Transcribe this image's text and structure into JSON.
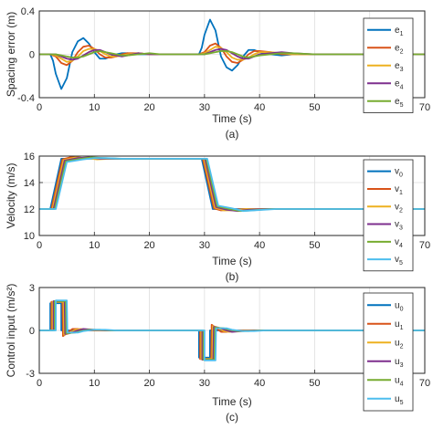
{
  "figure": {
    "captions": [
      "(a)",
      "(b)",
      "(c)"
    ]
  },
  "series_colors": [
    "#0072BD",
    "#D95319",
    "#EDB120",
    "#7E2F8E",
    "#77AC30",
    "#4DBEEE"
  ],
  "chart_data": [
    {
      "type": "line",
      "title": "",
      "xlabel": "Time (s)",
      "ylabel": "Spacing error (m)",
      "xlim": [
        0,
        70
      ],
      "ylim": [
        -0.4,
        0.4
      ],
      "xticks": [
        0,
        10,
        20,
        30,
        40,
        50,
        60,
        70
      ],
      "yticks": [
        -0.4,
        0,
        0.4
      ],
      "ytick_labels": [
        "-0.4",
        "0",
        "0.4"
      ],
      "xtick_labels": [
        "0",
        "10",
        "20",
        "30",
        "40",
        "50",
        "60",
        "70"
      ],
      "grid": true,
      "legend_position": "right",
      "legend_labels": [
        {
          "base": "e",
          "sub": "1"
        },
        {
          "base": "e",
          "sub": "2"
        },
        {
          "base": "e",
          "sub": "3"
        },
        {
          "base": "e",
          "sub": "4"
        },
        {
          "base": "e",
          "sub": "5"
        }
      ],
      "series": [
        {
          "x": [
            0,
            2,
            2.5,
            3,
            4,
            5,
            6,
            7,
            8,
            9,
            10,
            11,
            12,
            13,
            14,
            15,
            16,
            18,
            20,
            22,
            26,
            29,
            29.5,
            30,
            31,
            32,
            33,
            34,
            35,
            36,
            37,
            38,
            39,
            40,
            42,
            44,
            46,
            50,
            55,
            60,
            65,
            70
          ],
          "y": [
            0,
            0,
            -0.06,
            -0.18,
            -0.32,
            -0.22,
            0.02,
            0.12,
            0.15,
            0.1,
            0.02,
            -0.04,
            -0.04,
            -0.02,
            0.0,
            0.01,
            0.01,
            0.0,
            0,
            0,
            0,
            0,
            0.06,
            0.18,
            0.32,
            0.22,
            -0.02,
            -0.12,
            -0.15,
            -0.1,
            -0.02,
            0.04,
            0.04,
            0.02,
            0,
            -0.01,
            0,
            0,
            0,
            0,
            0,
            0
          ]
        },
        {
          "x": [
            0,
            2,
            3,
            4,
            5,
            6,
            7,
            8,
            9,
            10,
            11,
            12,
            13,
            14,
            15,
            16,
            18,
            20,
            22,
            26,
            29,
            30,
            31,
            32,
            33,
            34,
            35,
            36,
            37,
            38,
            39,
            40,
            42,
            44,
            46,
            50,
            55,
            60,
            65,
            70
          ],
          "y": [
            0,
            0,
            -0.02,
            -0.08,
            -0.1,
            -0.06,
            0.02,
            0.07,
            0.08,
            0.05,
            0.0,
            -0.03,
            -0.03,
            -0.02,
            0,
            0.01,
            0.01,
            0,
            0,
            0,
            0,
            0.02,
            0.08,
            0.1,
            0.06,
            -0.02,
            -0.07,
            -0.08,
            -0.05,
            0,
            0.03,
            0.03,
            0.02,
            0,
            0,
            0,
            0,
            0,
            0,
            0
          ]
        },
        {
          "x": [
            0,
            2,
            3,
            4,
            5,
            6,
            7,
            8,
            9,
            10,
            11,
            12,
            13,
            14,
            15,
            16,
            18,
            20,
            22,
            26,
            29,
            30,
            31,
            32,
            33,
            34,
            35,
            36,
            37,
            38,
            39,
            40,
            42,
            44,
            46,
            50,
            55,
            60,
            65,
            70
          ],
          "y": [
            0,
            0,
            -0.01,
            -0.04,
            -0.07,
            -0.06,
            -0.02,
            0.03,
            0.05,
            0.05,
            0.03,
            0.0,
            -0.02,
            -0.02,
            -0.01,
            0,
            0.01,
            0,
            0,
            0,
            0,
            0.01,
            0.04,
            0.07,
            0.06,
            0.02,
            -0.03,
            -0.05,
            -0.05,
            -0.03,
            0,
            0.02,
            0.02,
            0.01,
            0,
            0,
            0,
            0,
            0,
            0
          ]
        },
        {
          "x": [
            0,
            2,
            3,
            4,
            5,
            6,
            7,
            8,
            9,
            10,
            11,
            12,
            13,
            14,
            15,
            16,
            18,
            20,
            22,
            26,
            29,
            30,
            31,
            32,
            33,
            34,
            35,
            36,
            37,
            38,
            39,
            40,
            42,
            44,
            46,
            50,
            55,
            60,
            65,
            70
          ],
          "y": [
            0,
            0,
            0,
            -0.02,
            -0.04,
            -0.05,
            -0.04,
            -0.01,
            0.02,
            0.04,
            0.04,
            0.02,
            0.0,
            -0.01,
            -0.02,
            -0.01,
            0.01,
            0,
            0,
            0,
            0,
            0,
            0.02,
            0.04,
            0.05,
            0.04,
            0.01,
            -0.02,
            -0.04,
            -0.04,
            -0.02,
            0,
            0.01,
            0.02,
            0.01,
            0,
            0,
            0,
            0,
            0
          ]
        },
        {
          "x": [
            0,
            2,
            3,
            4,
            5,
            6,
            7,
            8,
            9,
            10,
            11,
            12,
            13,
            14,
            15,
            16,
            18,
            20,
            22,
            26,
            29,
            30,
            31,
            32,
            33,
            34,
            35,
            36,
            37,
            38,
            39,
            40,
            42,
            44,
            46,
            50,
            55,
            60,
            65,
            70
          ],
          "y": [
            0,
            0,
            0,
            -0.01,
            -0.02,
            -0.03,
            -0.03,
            -0.02,
            0.0,
            0.02,
            0.03,
            0.02,
            0.01,
            0,
            -0.01,
            -0.01,
            0,
            0.01,
            0,
            0,
            0,
            0,
            0.01,
            0.02,
            0.03,
            0.03,
            0.02,
            0,
            -0.02,
            -0.03,
            -0.02,
            -0.01,
            0,
            0.01,
            0.01,
            0,
            0,
            0,
            0,
            0
          ]
        }
      ]
    },
    {
      "type": "line",
      "title": "",
      "xlabel": "Time (s)",
      "ylabel": "Velocity (m/s)",
      "xlim": [
        0,
        70
      ],
      "ylim": [
        10,
        16
      ],
      "xticks": [
        0,
        10,
        20,
        30,
        40,
        50,
        60,
        70
      ],
      "yticks": [
        10,
        12,
        14,
        16
      ],
      "ytick_labels": [
        "10",
        "12",
        "14",
        "16"
      ],
      "xtick_labels": [
        "0",
        "10",
        "20",
        "30",
        "40",
        "50",
        "60",
        "70"
      ],
      "grid": true,
      "legend_position": "right",
      "legend_labels": [
        {
          "base": "v",
          "sub": "0"
        },
        {
          "base": "v",
          "sub": "1"
        },
        {
          "base": "v",
          "sub": "2"
        },
        {
          "base": "v",
          "sub": "3"
        },
        {
          "base": "v",
          "sub": "4"
        },
        {
          "base": "v",
          "sub": "5"
        }
      ],
      "series": [
        {
          "x": [
            0,
            2,
            4,
            8,
            12,
            29,
            29.5,
            31.5,
            40,
            70
          ],
          "y": [
            12,
            12,
            15.8,
            15.8,
            15.8,
            15.8,
            15.8,
            12,
            12,
            12
          ]
        },
        {
          "x": [
            0,
            2.2,
            4.2,
            6,
            8,
            10,
            12,
            29.2,
            29.7,
            31.7,
            33,
            35,
            37,
            40,
            70
          ],
          "y": [
            12,
            12,
            15.75,
            15.95,
            15.85,
            15.8,
            15.8,
            15.8,
            15.8,
            12.05,
            11.9,
            11.95,
            12,
            12,
            12
          ]
        },
        {
          "x": [
            0,
            2.4,
            4.4,
            6.5,
            8.5,
            10.5,
            13,
            29.4,
            29.9,
            31.9,
            33.5,
            35.5,
            37.5,
            40,
            70
          ],
          "y": [
            12,
            12,
            15.7,
            15.9,
            15.85,
            15.75,
            15.8,
            15.8,
            15.8,
            12.1,
            11.9,
            11.9,
            12,
            12,
            12
          ]
        },
        {
          "x": [
            0,
            2.6,
            4.6,
            7,
            9,
            11,
            14,
            29.6,
            30.1,
            32.1,
            34,
            36,
            38,
            41,
            70
          ],
          "y": [
            12,
            12,
            15.65,
            15.85,
            15.9,
            15.8,
            15.8,
            15.8,
            15.8,
            12.15,
            11.95,
            11.85,
            11.95,
            12,
            12
          ]
        },
        {
          "x": [
            0,
            2.8,
            4.8,
            7.5,
            9.5,
            11.5,
            14.5,
            29.8,
            30.3,
            32.3,
            34.5,
            36.5,
            38.5,
            42,
            70
          ],
          "y": [
            12,
            12,
            15.6,
            15.8,
            15.9,
            15.85,
            15.8,
            15.8,
            15.8,
            12.2,
            12.0,
            11.85,
            11.9,
            12,
            12
          ]
        },
        {
          "x": [
            0,
            3.0,
            5.0,
            8,
            10,
            12,
            15,
            30.0,
            30.5,
            32.5,
            35,
            37,
            39,
            43,
            70
          ],
          "y": [
            12,
            12,
            15.55,
            15.75,
            15.85,
            15.85,
            15.8,
            15.8,
            15.8,
            12.25,
            12.05,
            11.85,
            11.9,
            12,
            12
          ]
        }
      ]
    },
    {
      "type": "line",
      "title": "",
      "xlabel": "Time (s)",
      "ylabel": "Control input (m/s²)",
      "xlim": [
        0,
        70
      ],
      "ylim": [
        -3,
        3
      ],
      "xticks": [
        0,
        10,
        20,
        30,
        40,
        50,
        60,
        70
      ],
      "yticks": [
        -3,
        0,
        3
      ],
      "ytick_labels": [
        "-3",
        "0",
        "3"
      ],
      "xtick_labels": [
        "0",
        "10",
        "20",
        "30",
        "40",
        "50",
        "60",
        "70"
      ],
      "grid": true,
      "legend_position": "right",
      "legend_labels": [
        {
          "base": "u",
          "sub": "0"
        },
        {
          "base": "u",
          "sub": "1"
        },
        {
          "base": "u",
          "sub": "2"
        },
        {
          "base": "u",
          "sub": "3"
        },
        {
          "base": "u",
          "sub": "4"
        },
        {
          "base": "u",
          "sub": "5"
        }
      ],
      "series": [
        {
          "x": [
            0,
            2,
            2,
            4,
            4,
            29,
            29,
            31,
            31,
            70
          ],
          "y": [
            0,
            0,
            1.9,
            1.9,
            0,
            0,
            -1.9,
            -1.9,
            0,
            0
          ]
        },
        {
          "x": [
            0,
            2.2,
            2.2,
            4.2,
            4.3,
            5,
            6,
            7,
            8,
            10,
            29.2,
            29.2,
            31.2,
            31.3,
            32,
            33,
            34,
            35,
            37,
            70
          ],
          "y": [
            0,
            0,
            2.0,
            2.0,
            -0.4,
            -0.2,
            0.1,
            0.1,
            0,
            0,
            0,
            -2.0,
            -2.0,
            0.4,
            0.2,
            -0.1,
            -0.1,
            0,
            0,
            0
          ]
        },
        {
          "x": [
            0,
            2.4,
            2.4,
            4.4,
            4.5,
            5.5,
            6.5,
            7.5,
            9,
            11,
            29.4,
            29.4,
            31.4,
            31.5,
            32.5,
            33.5,
            34.5,
            36,
            38,
            70
          ],
          "y": [
            0,
            0,
            2.0,
            2.0,
            -0.3,
            -0.2,
            0.05,
            0.1,
            0.05,
            0,
            0,
            -2.0,
            -2.0,
            0.3,
            0.2,
            -0.05,
            -0.1,
            -0.05,
            0,
            0
          ]
        },
        {
          "x": [
            0,
            2.6,
            2.6,
            4.6,
            4.7,
            6,
            7,
            8,
            10,
            12,
            29.6,
            29.6,
            31.6,
            31.7,
            33,
            34,
            35,
            37,
            39,
            70
          ],
          "y": [
            0,
            0,
            2.05,
            2.05,
            -0.25,
            -0.15,
            0.0,
            0.1,
            0.05,
            0,
            0,
            -2.05,
            -2.05,
            0.25,
            0.15,
            0,
            -0.1,
            -0.05,
            0,
            0
          ]
        },
        {
          "x": [
            0,
            2.8,
            2.8,
            4.8,
            4.9,
            6.5,
            7.5,
            9,
            11,
            13,
            29.8,
            29.8,
            31.8,
            31.9,
            33.5,
            34.5,
            36,
            38,
            40,
            70
          ],
          "y": [
            0,
            0,
            2.05,
            2.05,
            -0.2,
            -0.15,
            -0.05,
            0.05,
            0.05,
            0,
            0,
            -2.05,
            -2.05,
            0.2,
            0.15,
            0.05,
            -0.05,
            -0.05,
            0,
            0
          ]
        },
        {
          "x": [
            0,
            3.0,
            3.0,
            5.0,
            5.1,
            7,
            8,
            10,
            12,
            14,
            30.0,
            30.0,
            32.0,
            32.1,
            34,
            35,
            37,
            39,
            41,
            70
          ],
          "y": [
            0,
            0,
            2.1,
            2.1,
            -0.15,
            -0.15,
            -0.05,
            0.05,
            0.05,
            0,
            0,
            -2.1,
            -2.1,
            0.15,
            0.15,
            0.05,
            -0.05,
            -0.05,
            0,
            0
          ]
        }
      ]
    }
  ]
}
